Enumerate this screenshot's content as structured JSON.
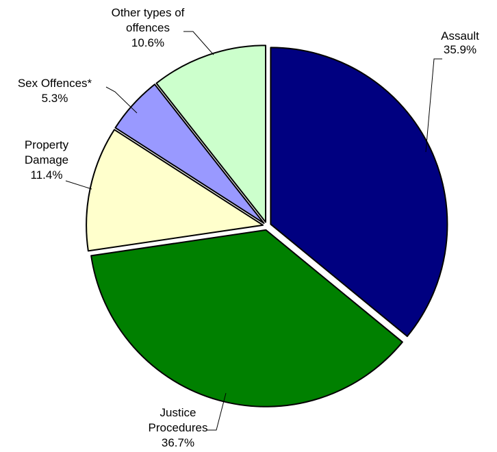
{
  "chart_data": {
    "type": "pie",
    "start": "12 o'clock",
    "direction": "clockwise",
    "slices": [
      {
        "name": "Assault",
        "label_lines": [
          "Assault"
        ],
        "pct_label": "35.9%",
        "value": 35.9,
        "color": "#000080"
      },
      {
        "name": "Justice Procedures",
        "label_lines": [
          "Justice",
          "Procedures"
        ],
        "pct_label": "36.7%",
        "value": 36.7,
        "color": "#008000"
      },
      {
        "name": "Property Damage",
        "label_lines": [
          "Property",
          "Damage"
        ],
        "pct_label": "11.4%",
        "value": 11.4,
        "color": "#FFFFCC"
      },
      {
        "name": "Sex Offences*",
        "label_lines": [
          "Sex Offences*"
        ],
        "pct_label": "5.3%",
        "value": 5.3,
        "color": "#9999FF"
      },
      {
        "name": "Other types of offences",
        "label_lines": [
          "Other types of",
          "offences"
        ],
        "pct_label": "10.6%",
        "value": 10.6,
        "color": "#CCFFCC"
      }
    ]
  }
}
